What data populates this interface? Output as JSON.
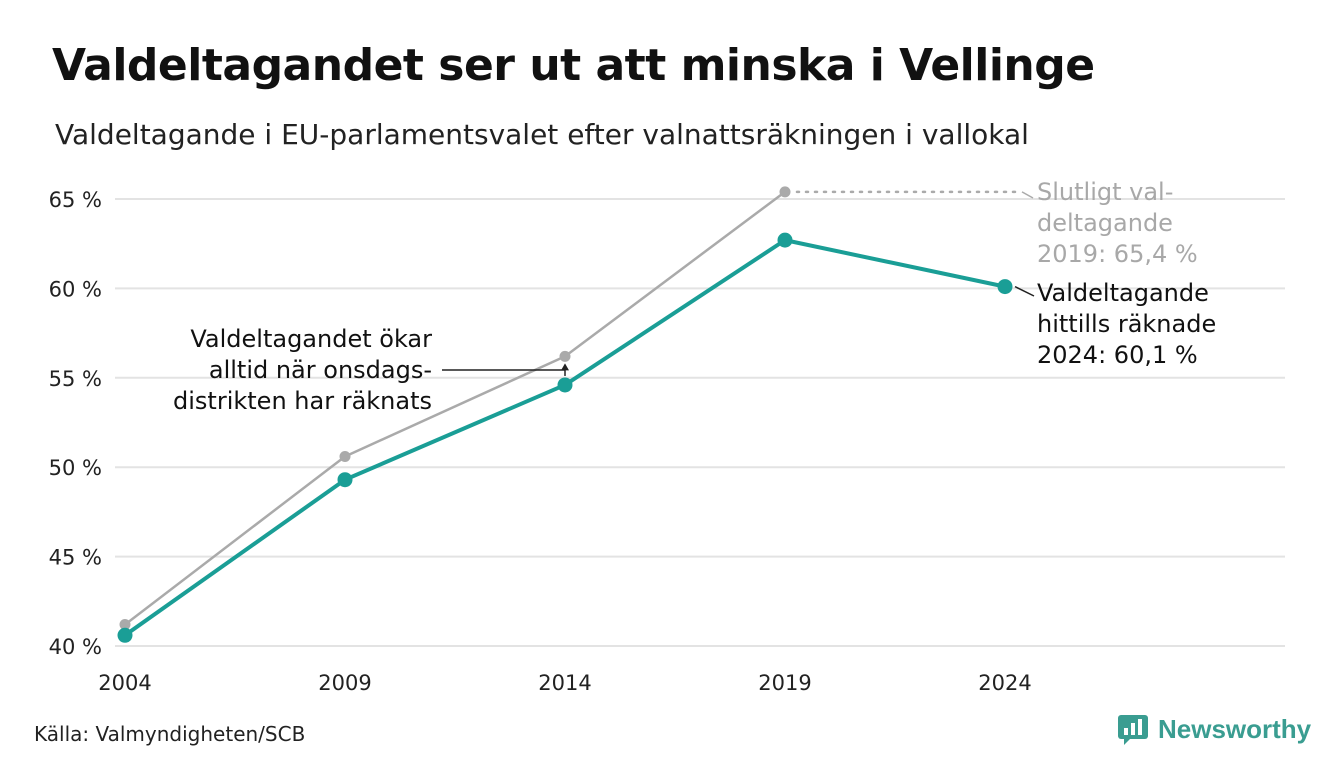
{
  "chart_data": {
    "type": "line",
    "title": "Valdeltagandet ser ut att minska i Vellinge",
    "subtitle": "Valdeltagande i EU-parlamentsvalet efter valnattsräkningen i vallokal",
    "x": [
      "2004",
      "2009",
      "2014",
      "2019",
      "2024"
    ],
    "y_ticks": [
      40,
      45,
      50,
      55,
      60,
      65
    ],
    "y_tick_labels": [
      "40 %",
      "45 %",
      "50 %",
      "55 %",
      "60 %",
      "65 %"
    ],
    "ylim": [
      40,
      65
    ],
    "grid": true,
    "series": [
      {
        "name": "Slutligt valdeltagande",
        "color": "#aaaaaa",
        "values": [
          41.2,
          50.6,
          56.2,
          65.4,
          null
        ]
      },
      {
        "name": "Valdeltagande hittills räknade",
        "color": "#1a9e96",
        "values": [
          40.6,
          49.3,
          54.6,
          62.7,
          60.1
        ]
      }
    ],
    "annotations": {
      "final_2019": [
        "Slutligt val-",
        "deltagande",
        "2019: 65,4 %"
      ],
      "counted_2024": [
        "Valdeltagande",
        "hittills räknade",
        "2024: 60,1 %"
      ],
      "increase_note": [
        "Valdeltagandet ökar",
        "alltid när onsdags-",
        "distrikten har räknats"
      ]
    }
  },
  "footer": {
    "source": "Källa: Valmyndigheten/SCB",
    "brand": "Newsworthy"
  },
  "colors": {
    "accent": "#1a9e96",
    "final": "#aaaaaa",
    "grid": "#e3e3e3",
    "brand": "#3a9d91"
  }
}
